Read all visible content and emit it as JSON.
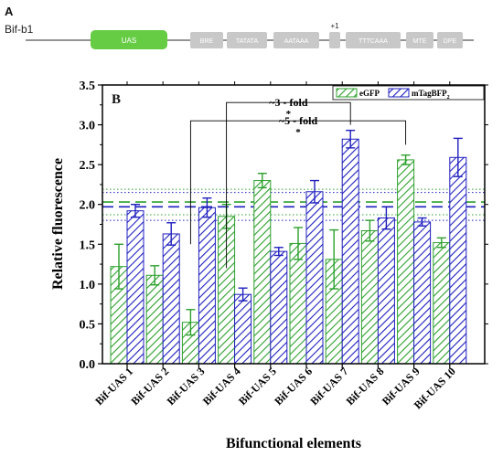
{
  "panel_a": {
    "letter": "A",
    "construct": "Bif-b1",
    "elements": [
      {
        "label": "UAS",
        "kind": "uas"
      },
      {
        "label": "BRE",
        "kind": "core"
      },
      {
        "label": "TATATA",
        "kind": "core"
      },
      {
        "label": "AATAAA",
        "kind": "core"
      },
      {
        "label": "",
        "kind": "core"
      },
      {
        "label": "TTTCAAA",
        "kind": "core"
      },
      {
        "label": "MTE",
        "kind": "core"
      },
      {
        "label": "DPE",
        "kind": "core"
      }
    ],
    "tss_label": "+1",
    "colors": {
      "uas": "#66cc44",
      "core": "#c8c8c8",
      "line": "#555555"
    }
  },
  "chart_data": {
    "type": "bar",
    "panel_label": "B",
    "xlabel": "Bifunctional elements",
    "ylabel": "Relative fluorescence",
    "ylim": [
      0.0,
      3.5
    ],
    "yticks": [
      "0.0",
      "0.5",
      "1.0",
      "1.5",
      "2.0",
      "2.5",
      "3.0",
      "3.5"
    ],
    "categories": [
      "Bif-UAS 1",
      "Bif-UAS 2",
      "Bif-UAS 3",
      "Bif-UAS 4",
      "Bif-UAS 5",
      "Bif-UAS 6",
      "Bif-UAS 7",
      "Bif-UAS 8",
      "Bif-UAS 9",
      "Bif-UAS 10"
    ],
    "series": [
      {
        "name": "eGFP",
        "color": "#2ca02c",
        "values": [
          1.22,
          1.11,
          0.52,
          1.85,
          2.3,
          1.51,
          1.31,
          1.67,
          2.56,
          1.52
        ],
        "errors": [
          0.28,
          0.12,
          0.16,
          0.15,
          0.09,
          0.2,
          0.37,
          0.13,
          0.06,
          0.06
        ]
      },
      {
        "name": "mTagBFP",
        "name_sub": "2",
        "color": "#1f1fbf",
        "values": [
          1.92,
          1.63,
          1.96,
          0.87,
          1.41,
          2.16,
          2.82,
          1.83,
          1.78,
          2.59
        ],
        "errors": [
          0.08,
          0.14,
          0.12,
          0.08,
          0.05,
          0.14,
          0.11,
          0.14,
          0.05,
          0.24
        ]
      }
    ],
    "reference_lines": [
      {
        "series": "eGFP",
        "style": "dashed",
        "value": 2.03
      },
      {
        "series": "eGFP",
        "style": "dotted",
        "value": 2.19
      },
      {
        "series": "eGFP",
        "style": "dotted",
        "value": 1.87
      },
      {
        "series": "mTagBFP",
        "style": "dashed",
        "value": 1.97
      },
      {
        "series": "mTagBFP",
        "style": "dotted",
        "value": 2.15
      },
      {
        "series": "mTagBFP",
        "style": "dotted",
        "value": 1.8
      }
    ],
    "annotations": [
      {
        "text": "~3 - fold",
        "star": "*",
        "from": "Bif-UAS 4",
        "to": "Bif-UAS 7"
      },
      {
        "text": "~5 - fold",
        "star": "*",
        "from": "Bif-UAS 3",
        "to": "Bif-UAS 9"
      }
    ],
    "legend_position": "top-right",
    "grid": false
  }
}
